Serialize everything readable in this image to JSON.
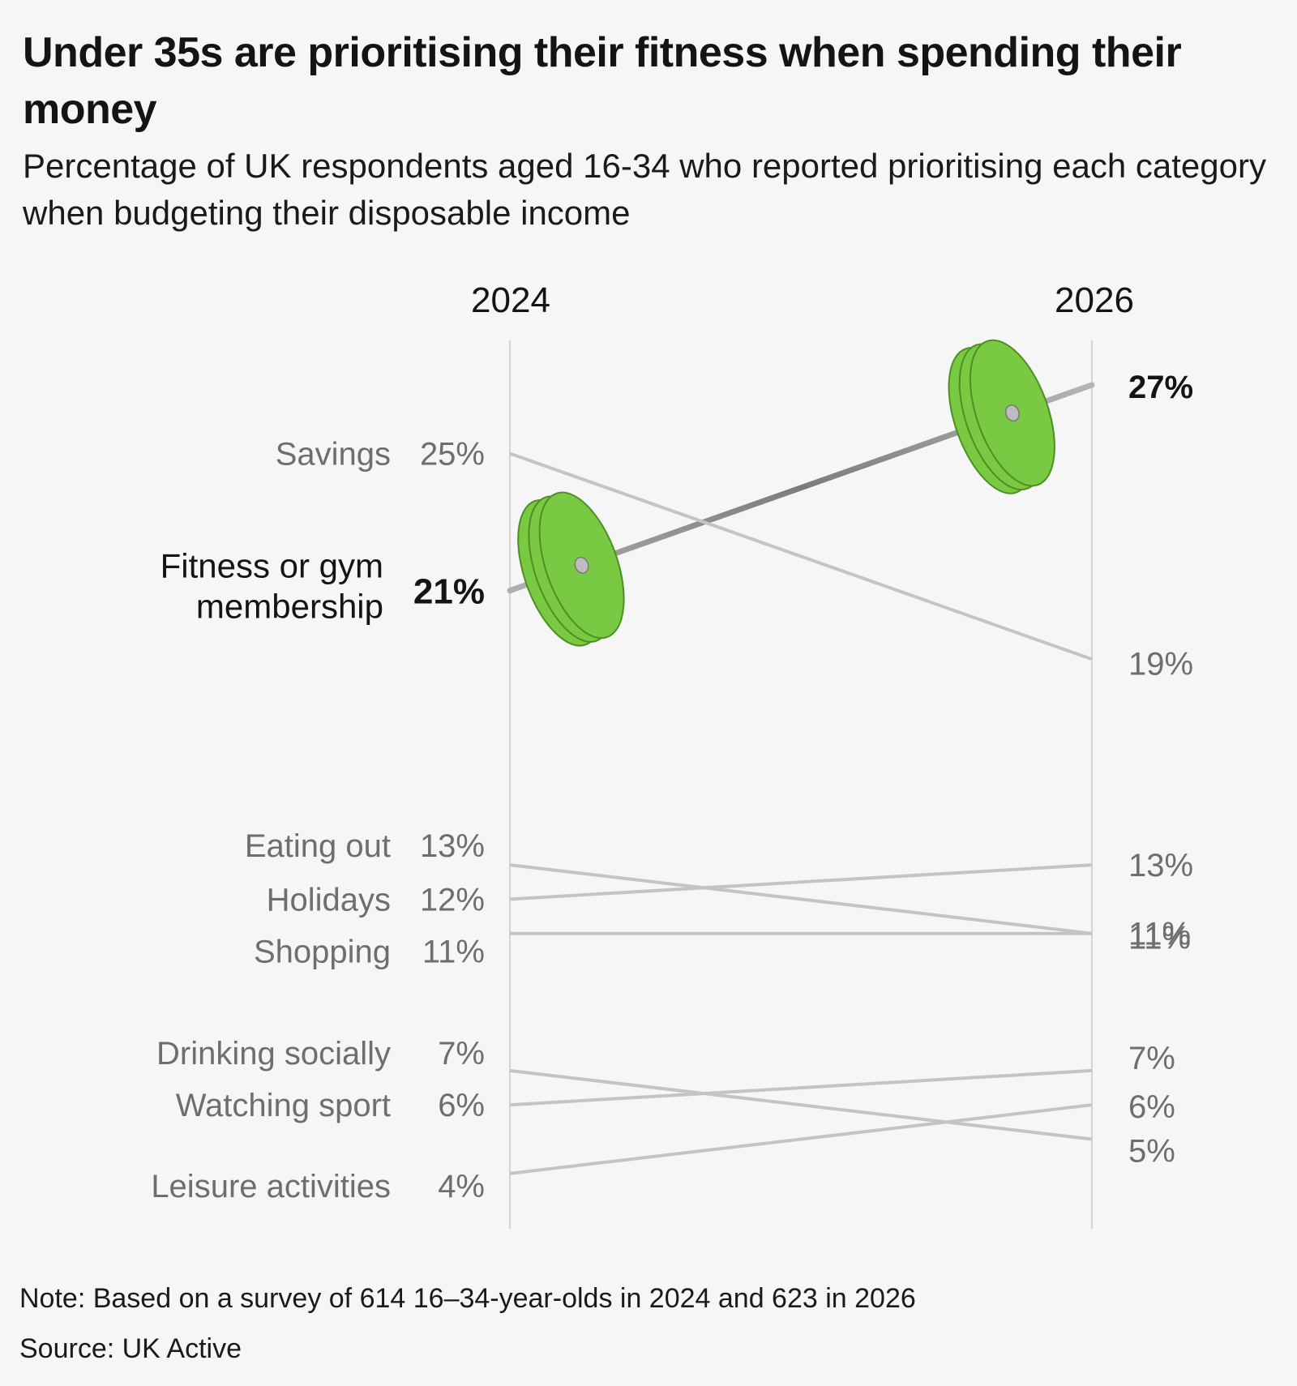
{
  "title": "Under 35s are prioritising their fitness when spending their money",
  "subtitle": "Percentage of UK respondents aged 16-34 who reported prioritising each category when budgeting their disposable income",
  "note": "Note: Based on a survey of 614 16–34-year-olds in 2024 and 623 in 2026",
  "source": "Source: UK Active",
  "colors": {
    "highlight_text": "#141414",
    "muted_text": "#6e6e6e",
    "muted_line": "#c4c4c4",
    "axis_line": "#d4d4d4",
    "barbell_plate": "#7ac943",
    "barbell_plate_dark": "#4e8f23",
    "barbell_bar": "#8a8a8a"
  },
  "chart_data": {
    "type": "line",
    "x": [
      "2024",
      "2026"
    ],
    "ylim": [
      3,
      28
    ],
    "grid": false,
    "legend": "none",
    "series": [
      {
        "name": "Fitness or gym membership",
        "label_lines": [
          "Fitness or gym",
          "membership"
        ],
        "values": [
          21,
          27
        ],
        "start_label": "21%",
        "end_label": "27%",
        "highlight": true
      },
      {
        "name": "Savings",
        "values": [
          25,
          19
        ],
        "start_label": "25%",
        "end_label": "19%"
      },
      {
        "name": "Eating out",
        "values": [
          13,
          11
        ],
        "start_label": "13%",
        "end_label": "11%"
      },
      {
        "name": "Holidays",
        "values": [
          12,
          13
        ],
        "start_label": "12%",
        "end_label": "13%"
      },
      {
        "name": "Shopping",
        "values": [
          11,
          11
        ],
        "start_label": "11%",
        "end_label": "11%"
      },
      {
        "name": "Drinking socially",
        "values": [
          7,
          5
        ],
        "start_label": "7%",
        "end_label": "5%"
      },
      {
        "name": "Watching sport",
        "values": [
          6,
          7
        ],
        "start_label": "6%",
        "end_label": "7%"
      },
      {
        "name": "Leisure activities",
        "values": [
          4,
          6
        ],
        "start_label": "4%",
        "end_label": "6%"
      }
    ]
  }
}
